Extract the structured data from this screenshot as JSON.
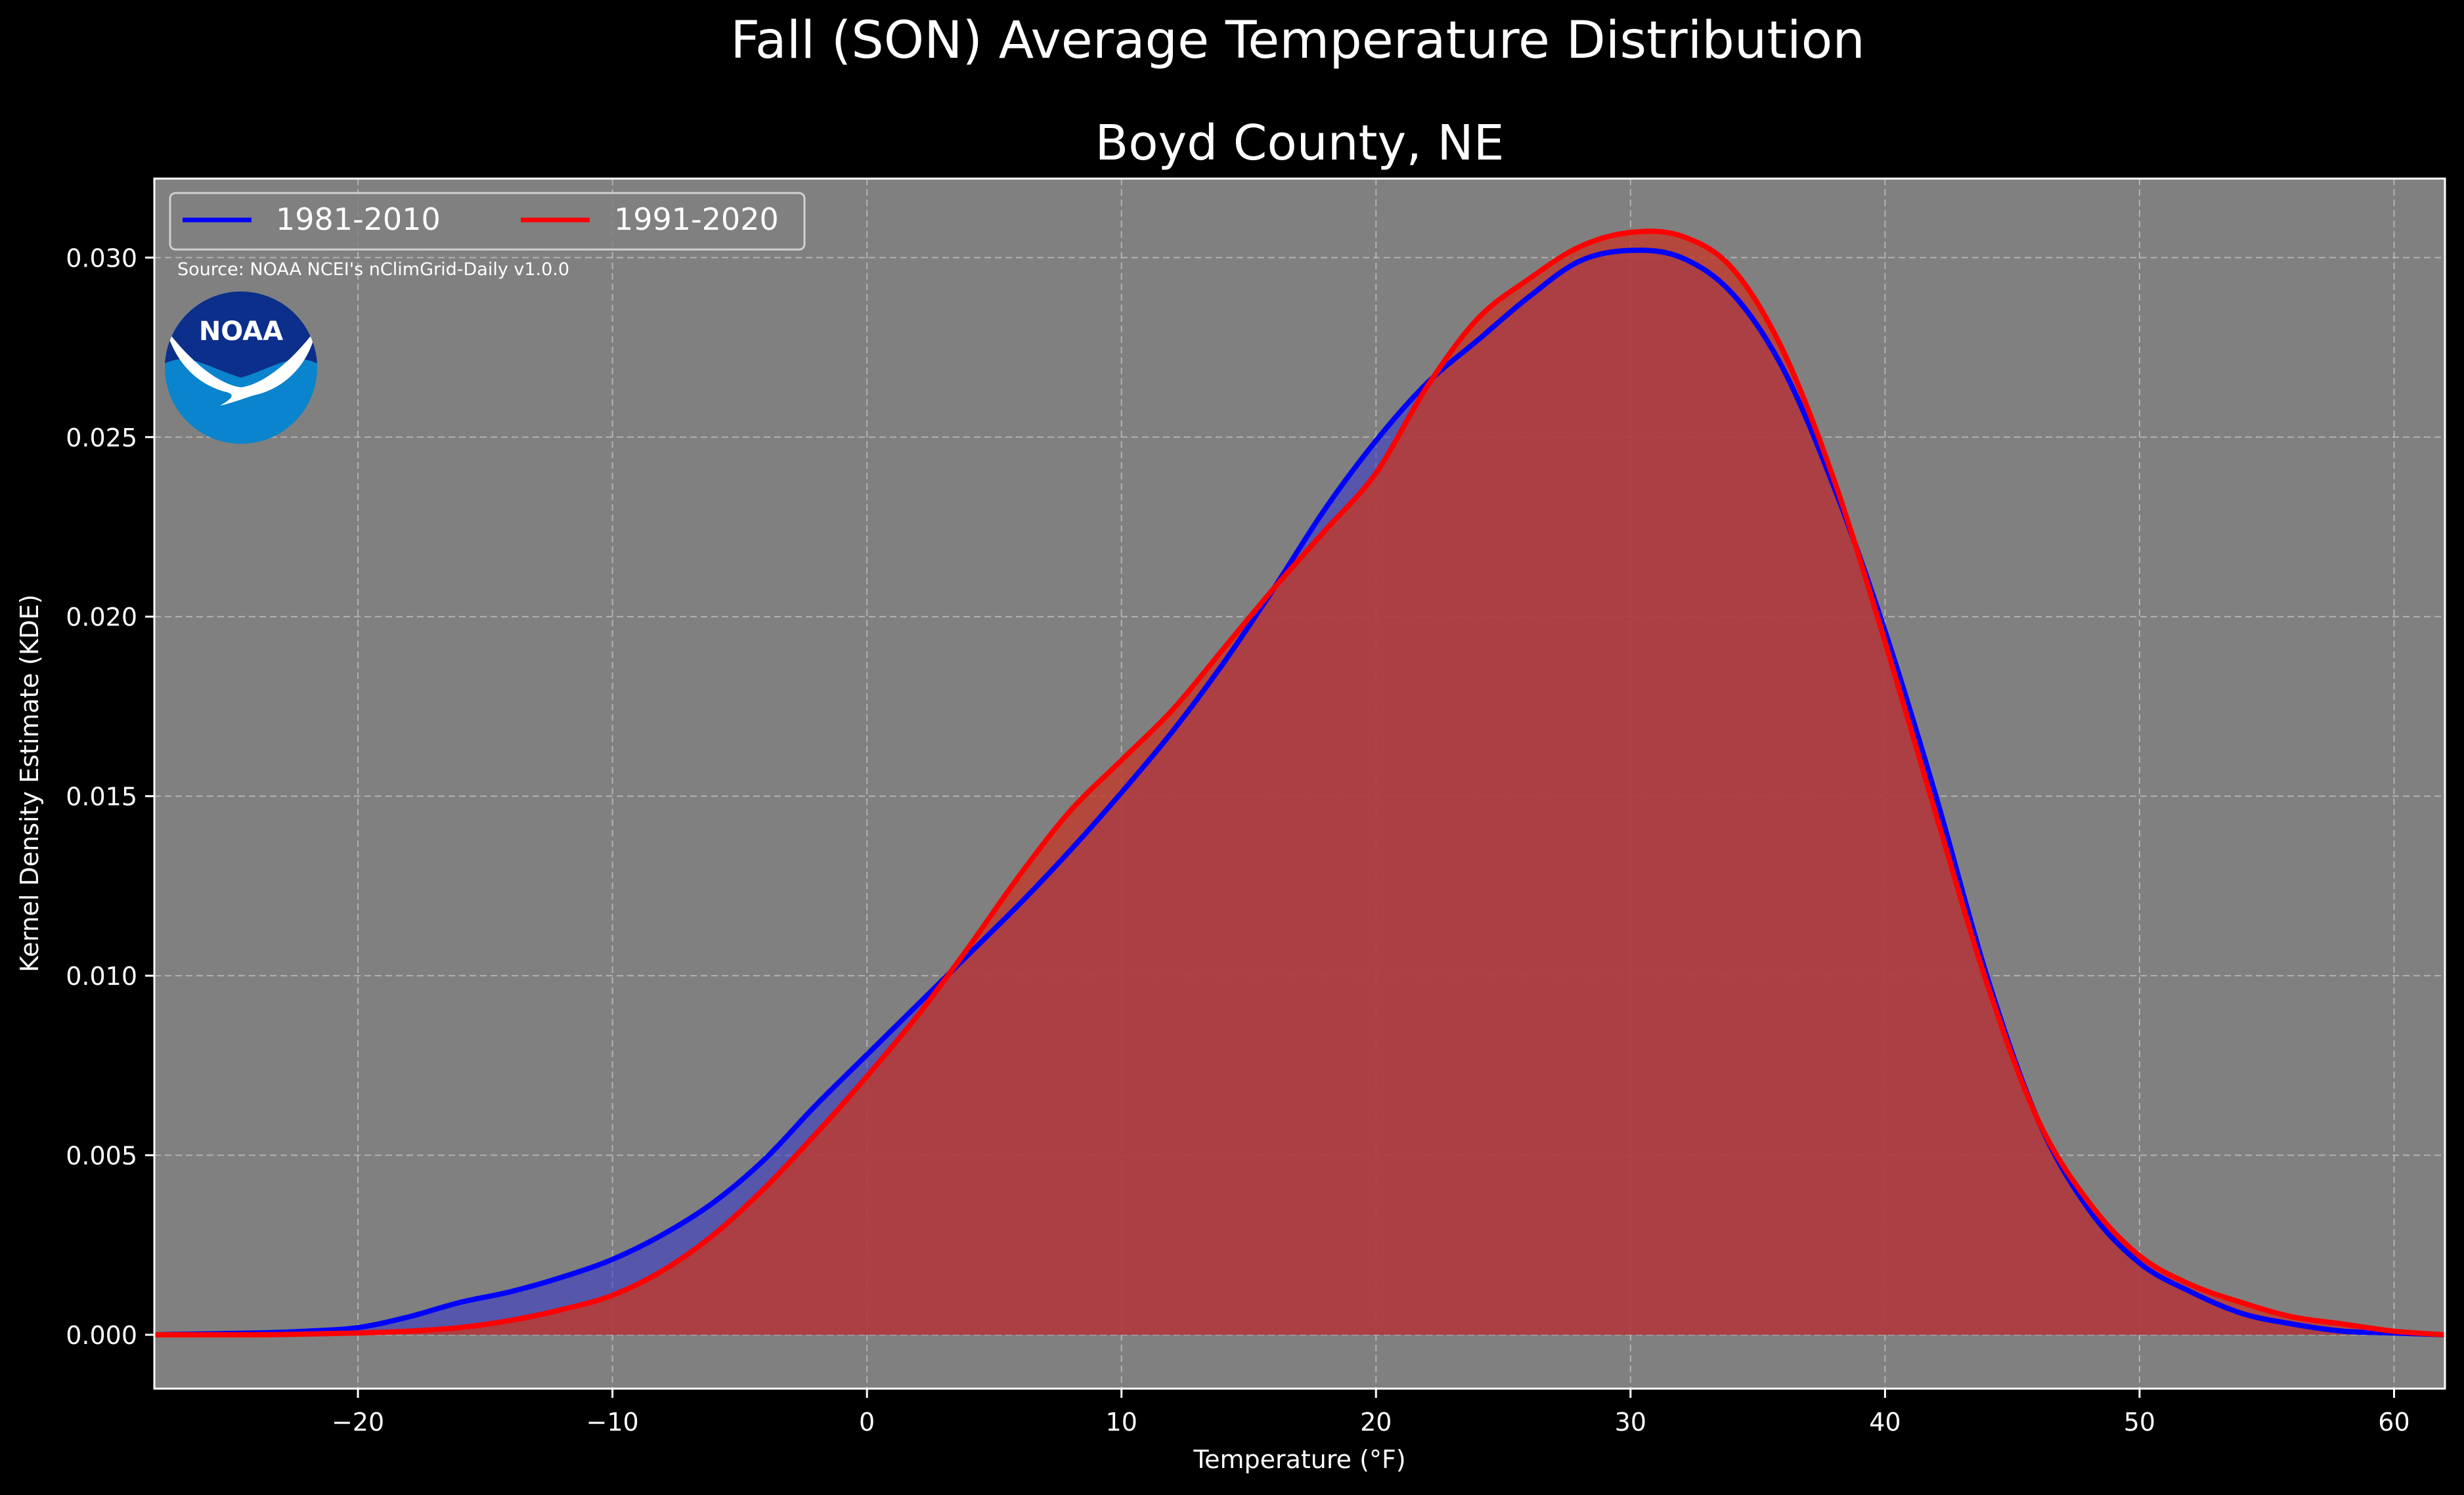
{
  "figure": {
    "suptitle": "Fall (SON) Average Temperature Distribution",
    "background_color": "#000000",
    "logo": {
      "name": "NOAA",
      "text": "NOAA"
    }
  },
  "chart_data": {
    "type": "area",
    "title": "Boyd County, NE",
    "xlabel": "Temperature (°F)",
    "ylabel": "Kernel Density Estimate (KDE)",
    "xlim": [
      -28,
      62
    ],
    "ylim": [
      -0.0015,
      0.0322
    ],
    "xticks": [
      -20,
      -10,
      0,
      10,
      20,
      30,
      40,
      50,
      60
    ],
    "xtick_labels": [
      "−20",
      "−10",
      "0",
      "10",
      "20",
      "30",
      "40",
      "50",
      "60"
    ],
    "yticks": [
      0.0,
      0.005,
      0.01,
      0.015,
      0.02,
      0.025,
      0.03
    ],
    "ytick_labels": [
      "0.000",
      "0.005",
      "0.010",
      "0.015",
      "0.020",
      "0.025",
      "0.030"
    ],
    "grid": true,
    "legend_location": "upper-left",
    "source_note": "Source: NOAA NCEI's nClimGrid-Daily v1.0.0",
    "plot_background_color": "#808080",
    "series": [
      {
        "name": "1981-2010",
        "line_color": "#0000ff",
        "fill_color": "#3333cc",
        "fill_opacity": 0.55,
        "x": [
          -28,
          -24,
          -22,
          -20,
          -18,
          -16,
          -14,
          -12,
          -10,
          -8,
          -6,
          -4,
          -2,
          0,
          2,
          4,
          6,
          8,
          10,
          12,
          14,
          16,
          18,
          20,
          22,
          24,
          26,
          28,
          30,
          32,
          34,
          36,
          38,
          40,
          42,
          44,
          46,
          48,
          50,
          52,
          54,
          56,
          58,
          60,
          62
        ],
        "y": [
          0.0,
          5e-05,
          0.0001,
          0.0002,
          0.0005,
          0.0009,
          0.0012,
          0.0016,
          0.0021,
          0.0028,
          0.0037,
          0.0049,
          0.0064,
          0.0078,
          0.0092,
          0.0106,
          0.012,
          0.0135,
          0.0151,
          0.0168,
          0.0187,
          0.0208,
          0.023,
          0.0249,
          0.0265,
          0.0277,
          0.0289,
          0.0299,
          0.0302,
          0.03,
          0.029,
          0.0269,
          0.0236,
          0.0196,
          0.015,
          0.01,
          0.006,
          0.0035,
          0.002,
          0.0012,
          0.0006,
          0.0003,
          0.0001,
          5e-05,
          0.0
        ]
      },
      {
        "name": "1991-2020",
        "line_color": "#ff0000",
        "fill_color": "#c0392b",
        "fill_opacity": 0.8,
        "x": [
          -28,
          -24,
          -22,
          -20,
          -18,
          -16,
          -14,
          -12,
          -10,
          -8,
          -6,
          -4,
          -2,
          0,
          2,
          4,
          6,
          8,
          10,
          12,
          14,
          16,
          18,
          20,
          22,
          24,
          26,
          28,
          30,
          32,
          34,
          36,
          38,
          40,
          42,
          44,
          46,
          48,
          50,
          52,
          54,
          56,
          58,
          60,
          62
        ],
        "y": [
          0.0,
          0.0,
          2e-05,
          5e-05,
          0.0001,
          0.0002,
          0.0004,
          0.0007,
          0.0011,
          0.0018,
          0.0028,
          0.0041,
          0.0056,
          0.0072,
          0.0089,
          0.0108,
          0.0128,
          0.0146,
          0.016,
          0.0174,
          0.0191,
          0.0208,
          0.0224,
          0.024,
          0.0264,
          0.0283,
          0.0294,
          0.0303,
          0.0307,
          0.0306,
          0.0297,
          0.0274,
          0.0238,
          0.0193,
          0.0145,
          0.0098,
          0.006,
          0.0037,
          0.0022,
          0.0014,
          0.0009,
          0.0005,
          0.0003,
          0.0001,
          0.0
        ]
      }
    ]
  }
}
